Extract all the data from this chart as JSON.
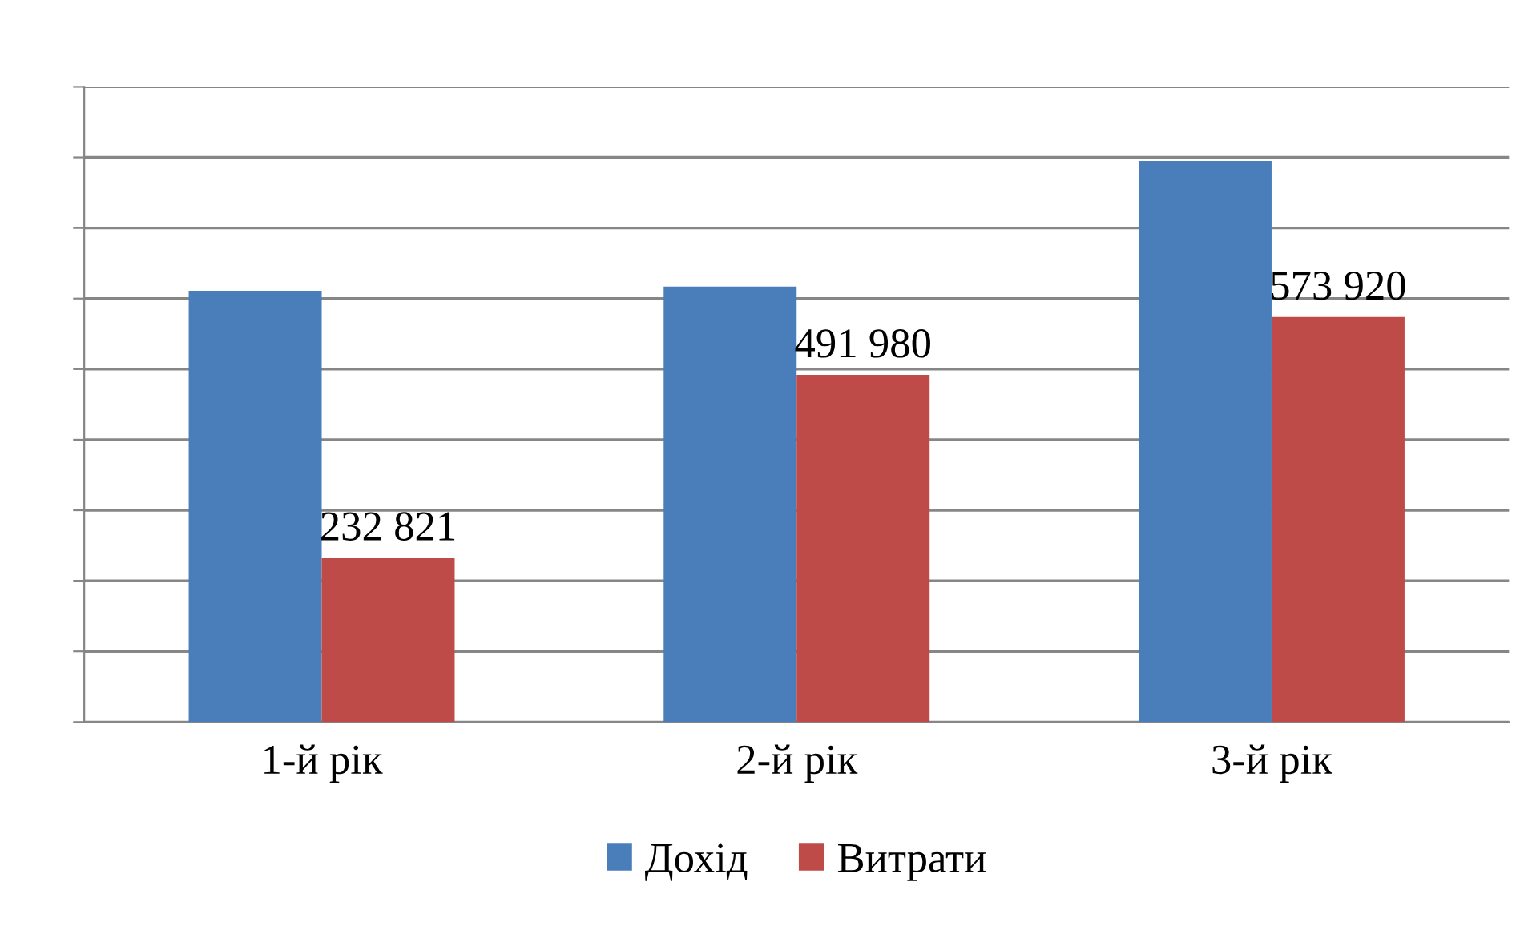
{
  "chart_data": {
    "type": "bar",
    "categories": [
      "1-й рік",
      "2-й рік",
      "3-й рік"
    ],
    "series": [
      {
        "name": "Дохід",
        "color": "#4a7ebb",
        "values": [
          611000,
          617000,
          795000
        ]
      },
      {
        "name": "Витрати",
        "color": "#be4b48",
        "values": [
          232821,
          491980,
          573920
        ],
        "value_labels": [
          "232 821",
          "491 980",
          "573 920"
        ]
      }
    ],
    "ylim": [
      0,
      900000
    ],
    "yticks": [
      {
        "value": 0,
        "label": null
      },
      {
        "value": 100000,
        "label": null
      },
      {
        "value": 200000,
        "label": null
      },
      {
        "value": 300000,
        "label": null
      },
      {
        "value": 400000,
        "label": null
      },
      {
        "value": 500000,
        "label": null
      },
      {
        "value": 600000,
        "label": null
      },
      {
        "value": 700000,
        "label": null
      },
      {
        "value": 800000,
        "label": null
      },
      {
        "value": 900000,
        "label": null
      }
    ],
    "grid": "y",
    "legend": "bottom"
  }
}
